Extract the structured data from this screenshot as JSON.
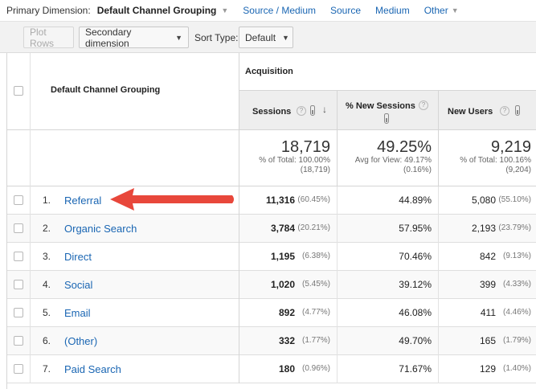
{
  "dimension_bar": {
    "label": "Primary Dimension:",
    "active": "Default Channel Grouping",
    "links": [
      "Source / Medium",
      "Source",
      "Medium",
      "Other"
    ]
  },
  "toolbar": {
    "plot_rows": "Plot Rows",
    "secondary_dimension": "Secondary dimension",
    "sort_type_label": "Sort Type:",
    "sort_type_value": "Default"
  },
  "table": {
    "dimension_header": "Default Channel Grouping",
    "group_header": "Acquisition",
    "metrics": {
      "sessions": "Sessions",
      "new_sessions": "% New Sessions",
      "new_users": "New Users"
    },
    "totals": {
      "sessions": {
        "value": "18,719",
        "line1": "% of Total: 100.00%",
        "line2": "(18,719)"
      },
      "new_sessions": {
        "value": "49.25%",
        "line1": "Avg for View: 49.17%",
        "line2": "(0.16%)"
      },
      "new_users": {
        "value": "9,219",
        "line1": "% of Total: 100.16%",
        "line2": "(9,204)"
      }
    },
    "rows": [
      {
        "num": "1.",
        "name": "Referral",
        "sessions": "11,316",
        "sessions_pct": "(60.45%)",
        "new_sessions": "44.89%",
        "new_users": "5,080",
        "new_users_pct": "(55.10%)"
      },
      {
        "num": "2.",
        "name": "Organic Search",
        "sessions": "3,784",
        "sessions_pct": "(20.21%)",
        "new_sessions": "57.95%",
        "new_users": "2,193",
        "new_users_pct": "(23.79%)"
      },
      {
        "num": "3.",
        "name": "Direct",
        "sessions": "1,195",
        "sessions_pct": "(6.38%)",
        "new_sessions": "70.46%",
        "new_users": "842",
        "new_users_pct": "(9.13%)"
      },
      {
        "num": "4.",
        "name": "Social",
        "sessions": "1,020",
        "sessions_pct": "(5.45%)",
        "new_sessions": "39.12%",
        "new_users": "399",
        "new_users_pct": "(4.33%)"
      },
      {
        "num": "5.",
        "name": "Email",
        "sessions": "892",
        "sessions_pct": "(4.77%)",
        "new_sessions": "46.08%",
        "new_users": "411",
        "new_users_pct": "(4.46%)"
      },
      {
        "num": "6.",
        "name": "(Other)",
        "sessions": "332",
        "sessions_pct": "(1.77%)",
        "new_sessions": "49.70%",
        "new_users": "165",
        "new_users_pct": "(1.79%)"
      },
      {
        "num": "7.",
        "name": "Paid Search",
        "sessions": "180",
        "sessions_pct": "(0.96%)",
        "new_sessions": "71.67%",
        "new_users": "129",
        "new_users_pct": "(1.40%)"
      }
    ]
  },
  "annotation": {
    "arrow_color": "#e8473b",
    "icon": "red-arrow-icon"
  }
}
